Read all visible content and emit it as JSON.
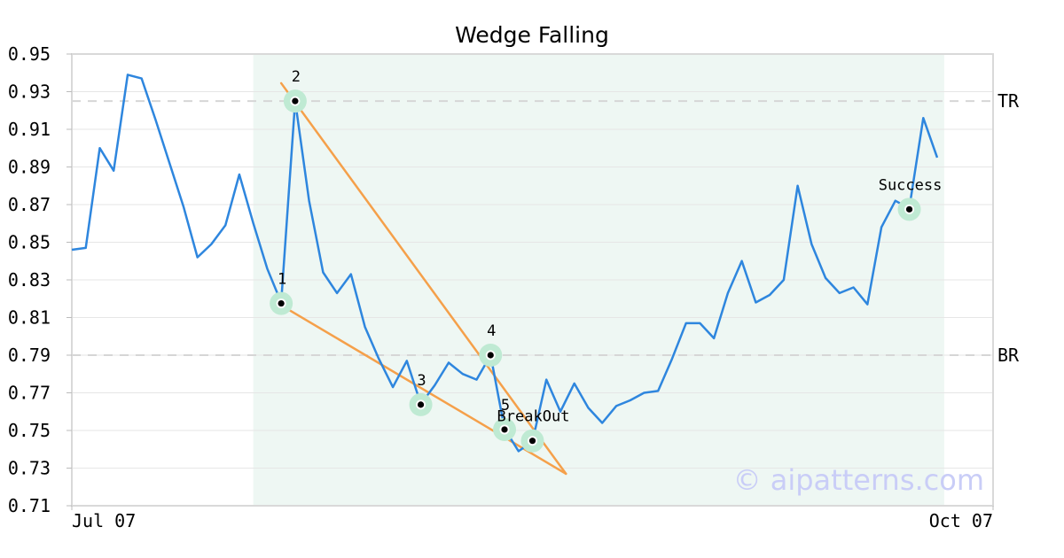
{
  "chart_data": {
    "type": "line",
    "title": "Wedge Falling",
    "ylim": [
      0.71,
      0.95
    ],
    "xlim": [
      0,
      66
    ],
    "y_ticks": [
      "0.71",
      "0.73",
      "0.75",
      "0.77",
      "0.79",
      "0.81",
      "0.83",
      "0.85",
      "0.87",
      "0.89",
      "0.91",
      "0.93",
      "0.95"
    ],
    "x_ticks": [
      {
        "x": 0,
        "label": "Jul 07"
      },
      {
        "x": 66,
        "label": "Oct 07"
      }
    ],
    "grid": "horizontal",
    "series": [
      {
        "color": "#2e86de",
        "y": [
          0.846,
          0.847,
          0.9,
          0.888,
          0.939,
          0.937,
          0.915,
          0.892,
          0.869,
          0.842,
          0.849,
          0.859,
          0.886,
          0.86,
          0.836,
          0.818,
          0.925,
          0.872,
          0.834,
          0.823,
          0.833,
          0.805,
          0.788,
          0.773,
          0.787,
          0.764,
          0.774,
          0.786,
          0.78,
          0.777,
          0.79,
          0.751,
          0.739,
          0.744,
          0.777,
          0.76,
          0.775,
          0.762,
          0.754,
          0.763,
          0.766,
          0.77,
          0.771,
          0.788,
          0.807,
          0.807,
          0.799,
          0.823,
          0.84,
          0.818,
          0.822,
          0.83,
          0.88,
          0.849,
          0.831,
          0.823,
          0.826,
          0.817,
          0.858,
          0.872,
          0.868,
          0.916,
          0.895
        ]
      }
    ],
    "shaded_region": {
      "x0": 13,
      "x1": 62.5,
      "color": "#eef7f3"
    },
    "reference_lines": [
      {
        "label": "TR",
        "y": 0.925
      },
      {
        "label": "BR",
        "y": 0.79
      }
    ],
    "trend_lines": [
      {
        "x0": 15,
        "y0": 0.9345,
        "x1": 35.4,
        "y1": 0.727
      },
      {
        "x0": 15,
        "y0": 0.8165,
        "x1": 35.4,
        "y1": 0.727
      }
    ],
    "annotations": [
      {
        "label": "1",
        "x": 15,
        "y": 0.8175
      },
      {
        "label": "2",
        "x": 16,
        "y": 0.925
      },
      {
        "label": "3",
        "x": 25,
        "y": 0.7637
      },
      {
        "label": "4",
        "x": 30,
        "y": 0.79
      },
      {
        "label": "5",
        "x": 31,
        "y": 0.7505
      },
      {
        "label": "BreakOut",
        "x": 33,
        "y": 0.7445
      },
      {
        "label": "Success",
        "x": 60,
        "y": 0.8675
      }
    ],
    "watermark": "© aipatterns.com"
  }
}
